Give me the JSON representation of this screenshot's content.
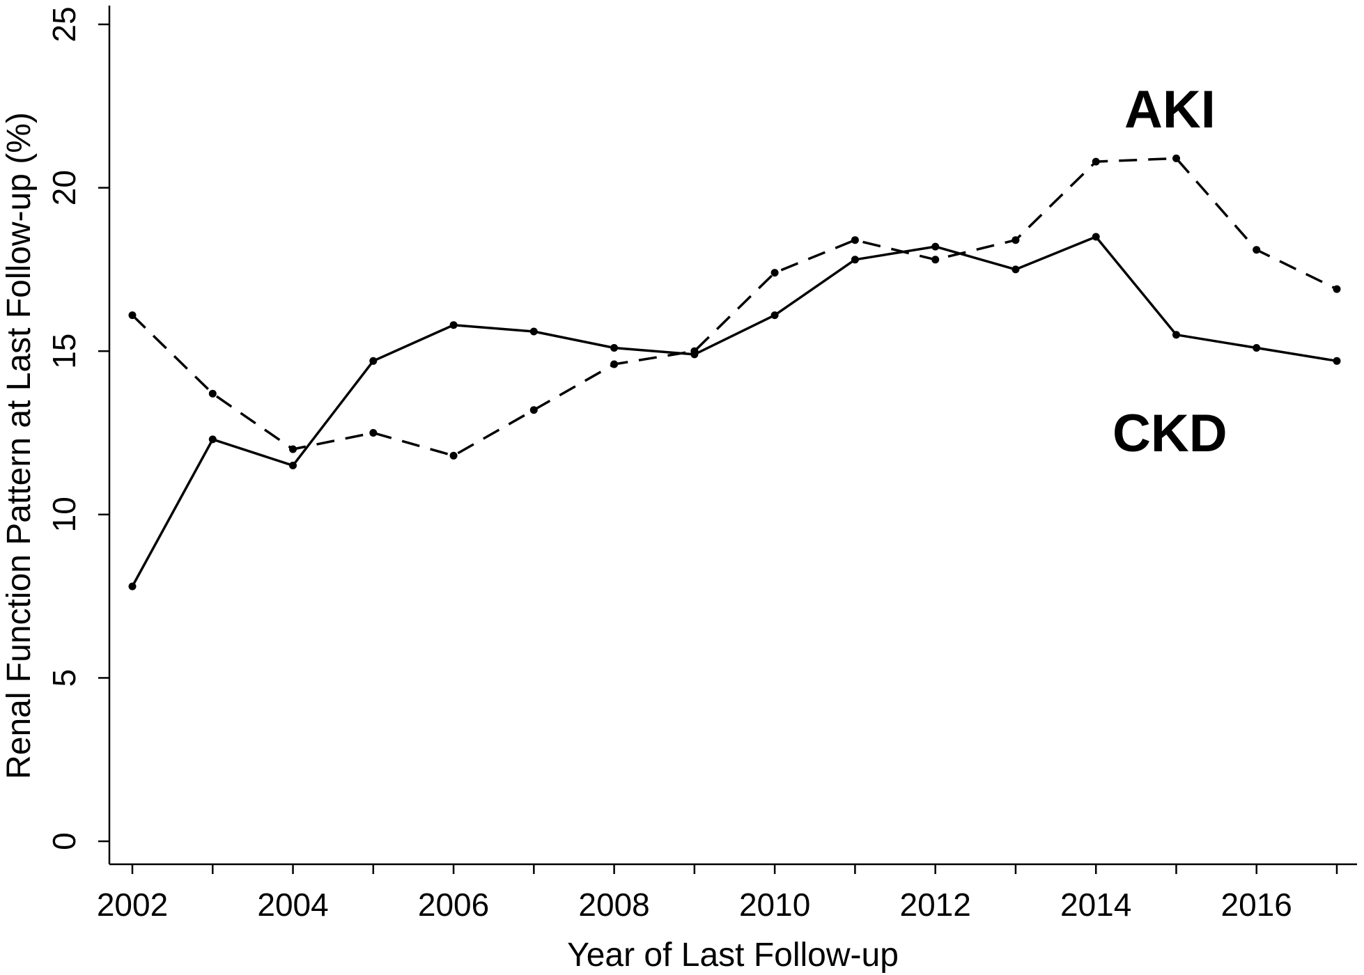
{
  "chart_data": {
    "type": "line",
    "xlabel": "Year of Last Follow-up",
    "ylabel": "Renal Function Pattern at Last Follow-up (%)",
    "xlim": [
      2002,
      2017
    ],
    "ylim": [
      0,
      25
    ],
    "x_ticks": [
      "2002",
      "2004",
      "2006",
      "2008",
      "2010",
      "2012",
      "2014",
      "2016"
    ],
    "y_ticks": [
      "0",
      "5",
      "10",
      "15",
      "20",
      "25"
    ],
    "grid": false,
    "legend": "none",
    "x": [
      2002,
      2003,
      2004,
      2005,
      2006,
      2007,
      2008,
      2009,
      2010,
      2011,
      2012,
      2013,
      2014,
      2015,
      2016,
      2017
    ],
    "series": [
      {
        "name": "AKI",
        "line_style": "dashed",
        "color": "#000000",
        "values": [
          16.1,
          13.7,
          12.0,
          12.5,
          11.8,
          13.2,
          14.6,
          15.0,
          17.4,
          18.4,
          17.8,
          18.4,
          20.8,
          20.9,
          18.1,
          16.9
        ]
      },
      {
        "name": "CKD",
        "line_style": "solid",
        "color": "#000000",
        "values": [
          7.8,
          12.3,
          11.5,
          14.7,
          15.8,
          15.6,
          15.1,
          14.9,
          16.1,
          17.8,
          18.2,
          17.5,
          18.5,
          15.5,
          15.1,
          14.7
        ]
      }
    ],
    "annotations": [
      "AKI",
      "CKD"
    ]
  }
}
